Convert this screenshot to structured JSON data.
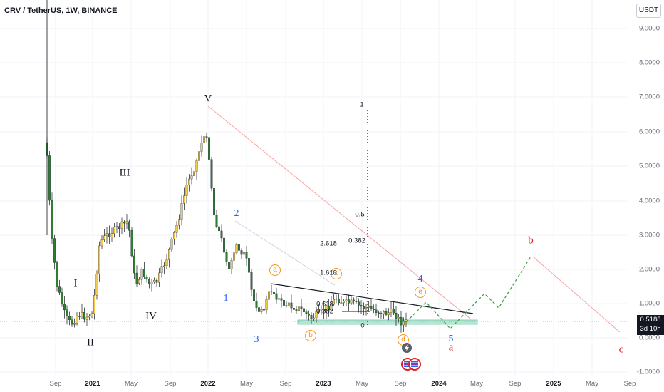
{
  "header": {
    "symbol_title": "CRV / TetherUS, 1W, BINANCE"
  },
  "currency_button": "USDT",
  "current_price": {
    "value": "0.5188",
    "countdown": "3d 10h"
  },
  "y_axis_labels": [
    "9.0000",
    "8.0000",
    "7.0000",
    "6.0000",
    "5.0000",
    "4.0000",
    "3.0000",
    "2.0000",
    "1.0000",
    "0.0000",
    "-1.0000"
  ],
  "x_axis_labels": [
    {
      "text": "Sep",
      "bold": false
    },
    {
      "text": "2021",
      "bold": true
    },
    {
      "text": "May",
      "bold": false
    },
    {
      "text": "Sep",
      "bold": false
    },
    {
      "text": "2022",
      "bold": true
    },
    {
      "text": "May",
      "bold": false
    },
    {
      "text": "Sep",
      "bold": false
    },
    {
      "text": "2023",
      "bold": true
    },
    {
      "text": "May",
      "bold": false
    },
    {
      "text": "Sep",
      "bold": false
    },
    {
      "text": "2024",
      "bold": true
    },
    {
      "text": "May",
      "bold": false
    },
    {
      "text": "Sep",
      "bold": false
    },
    {
      "text": "2025",
      "bold": true
    },
    {
      "text": "May",
      "bold": false
    },
    {
      "text": "Sep",
      "bold": false
    }
  ],
  "wave_labels": {
    "roman": [
      "I",
      "II",
      "III",
      "IV",
      "V"
    ],
    "impulse": [
      "1",
      "2",
      "3",
      "4",
      "5"
    ],
    "abc_red": [
      "a",
      "b",
      "c"
    ],
    "abcde_circled": [
      "a",
      "b",
      "c",
      "d",
      "e"
    ]
  },
  "fib_labels": [
    "1",
    "0.5",
    "0.382",
    "2.618",
    "1.618",
    "0.618",
    "0.382",
    "0"
  ],
  "colors": {
    "candle_up": "#f2c94c",
    "candle_down": "#2e7d32",
    "wick": "#131722",
    "trend_line": "#131722",
    "red_line": "#f4a6a6",
    "projection": "#43a047",
    "support_zone": "#b7e4d3",
    "wave_blue": "#2962ff",
    "wave_red": "#e02020",
    "wave_orange": "#f7941d"
  }
}
